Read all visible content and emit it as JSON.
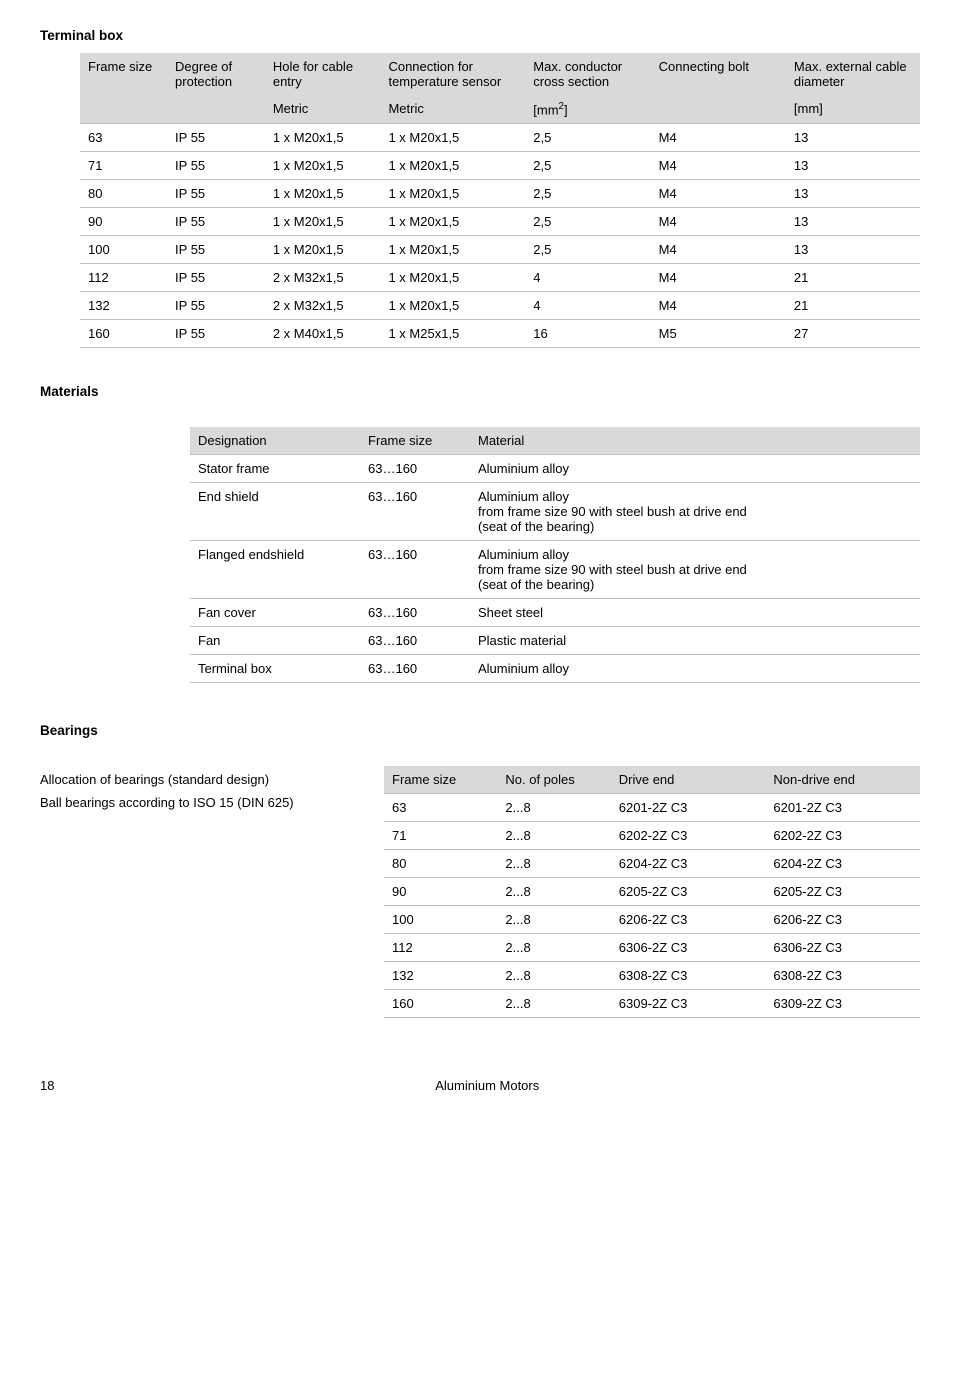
{
  "terminal_box": {
    "title": "Terminal box",
    "headers1": [
      "Frame size",
      "Degree of protection",
      "Hole for cable entry",
      "Connection for temperature sensor",
      "Max. conductor cross section",
      "Connecting bolt",
      "Max. external cable diameter"
    ],
    "headers2": [
      "",
      "",
      "Metric",
      "Metric",
      "[mm²]",
      "",
      "[mm]"
    ],
    "col_widths": [
      "90",
      "100",
      "120",
      "150",
      "130",
      "140",
      "140"
    ],
    "rows": [
      [
        "63",
        "IP 55",
        "1 x M20x1,5",
        "1 x M20x1,5",
        "2,5",
        "M4",
        "13"
      ],
      [
        "71",
        "IP 55",
        "1 x M20x1,5",
        "1 x M20x1,5",
        "2,5",
        "M4",
        "13"
      ],
      [
        "80",
        "IP 55",
        "1 x M20x1,5",
        "1 x M20x1,5",
        "2,5",
        "M4",
        "13"
      ],
      [
        "90",
        "IP 55",
        "1 x M20x1,5",
        "1 x M20x1,5",
        "2,5",
        "M4",
        "13"
      ],
      [
        "100",
        "IP 55",
        "1 x M20x1,5",
        "1 x M20x1,5",
        "2,5",
        "M4",
        "13"
      ],
      [
        "112",
        "IP 55",
        "2 x M32x1,5",
        "1 x M20x1,5",
        "4",
        "M4",
        "21"
      ],
      [
        "132",
        "IP 55",
        "2 x M32x1,5",
        "1 x M20x1,5",
        "4",
        "M4",
        "21"
      ],
      [
        "160",
        "IP 55",
        "2 x M40x1,5",
        "1 x M25x1,5",
        "16",
        "M5",
        "27"
      ]
    ]
  },
  "materials": {
    "title": "Materials",
    "headers": [
      "Designation",
      "Frame size",
      "Material"
    ],
    "col_widths": [
      "170",
      "110",
      "auto"
    ],
    "rows": [
      [
        "Stator frame",
        "63…160",
        "Aluminium alloy"
      ],
      [
        "End shield",
        "63…160",
        "Aluminium alloy\nfrom frame size 90 with steel bush at drive end\n(seat of the bearing)"
      ],
      [
        "Flanged endshield",
        "63…160",
        "Aluminium alloy\nfrom frame size 90 with steel bush at drive end\n(seat of the bearing)"
      ],
      [
        "Fan cover",
        "63…160",
        "Sheet steel"
      ],
      [
        "Fan",
        "63…160",
        "Plastic material"
      ],
      [
        "Terminal box",
        "63…160",
        "Aluminium alloy"
      ]
    ]
  },
  "bearings": {
    "title": "Bearings",
    "line1": "Allocation of bearings (standard design)",
    "line2": "Ball bearings according to ISO 15 (DIN 625)",
    "headers": [
      "Frame size",
      "No. of poles",
      "Drive end",
      "Non-drive end"
    ],
    "col_widths": [
      "110",
      "110",
      "150",
      "150"
    ],
    "rows": [
      [
        "63",
        "2...8",
        "6201-2Z C3",
        "6201-2Z C3"
      ],
      [
        "71",
        "2...8",
        "6202-2Z C3",
        "6202-2Z C3"
      ],
      [
        "80",
        "2...8",
        "6204-2Z C3",
        "6204-2Z C3"
      ],
      [
        "90",
        "2...8",
        "6205-2Z C3",
        "6205-2Z C3"
      ],
      [
        "100",
        "2...8",
        "6206-2Z C3",
        "6206-2Z C3"
      ],
      [
        "112",
        "2...8",
        "6306-2Z C3",
        "6306-2Z C3"
      ],
      [
        "132",
        "2...8",
        "6308-2Z C3",
        "6308-2Z C3"
      ],
      [
        "160",
        "2...8",
        "6309-2Z C3",
        "6309-2Z C3"
      ]
    ]
  },
  "footer": {
    "page": "18",
    "title": "Aluminium Motors"
  }
}
